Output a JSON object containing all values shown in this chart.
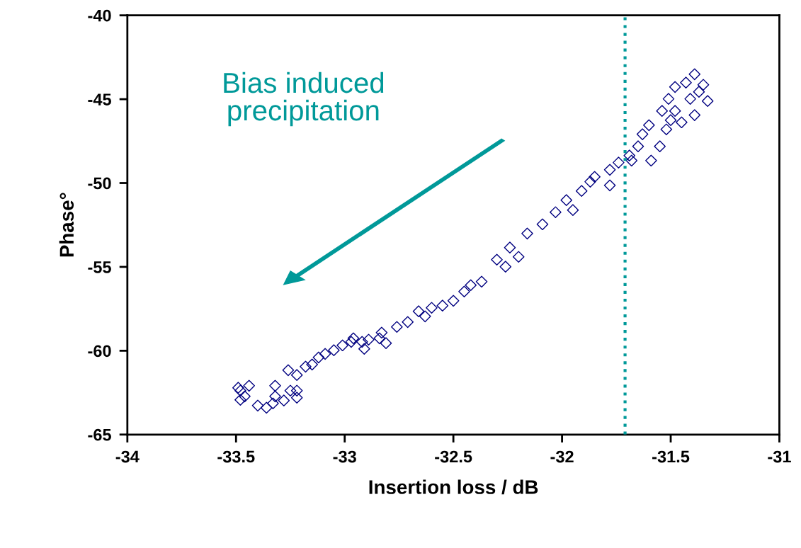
{
  "chart_data": {
    "type": "scatter",
    "xlabel": "Insertion loss / dB",
    "ylabel": "Phase°",
    "xlim": [
      -34,
      -31
    ],
    "xticks": [
      -34,
      -33.5,
      -33,
      -32.5,
      -32,
      -31.5,
      -31
    ],
    "ylim": [
      -65,
      -40
    ],
    "yticks": [
      -65,
      -60,
      -55,
      -50,
      -45,
      -40
    ],
    "grid": false,
    "marker": "diamond",
    "ref_lines": [
      {
        "axis": "x",
        "value": -31.71,
        "label": null,
        "color": "#009999",
        "line_style": "dotted"
      }
    ],
    "annotations": [
      "Bias induced\nprecipitation"
    ],
    "series": [
      {
        "color": "#000080",
        "x": [
          -33.48,
          -33.46,
          -33.44,
          -33.49,
          -33.48,
          -33.4,
          -33.36,
          -33.33,
          -33.32,
          -33.28,
          -33.25,
          -33.22,
          -33.22,
          -33.32,
          -33.26,
          -33.22,
          -33.18,
          -33.15,
          -33.12,
          -33.09,
          -33.05,
          -33.01,
          -32.97,
          -32.96,
          -32.92,
          -32.89,
          -32.84,
          -32.91,
          -32.81,
          -32.83,
          -32.76,
          -32.71,
          -32.66,
          -32.63,
          -32.6,
          -32.55,
          -32.5,
          -32.45,
          -32.42,
          -32.37,
          -32.3,
          -32.26,
          -32.2,
          -32.24,
          -32.16,
          -32.09,
          -32.03,
          -31.98,
          -31.95,
          -31.91,
          -31.87,
          -31.85,
          -31.78,
          -31.78,
          -31.74,
          -31.69,
          -31.68,
          -31.65,
          -31.63,
          -31.6,
          -31.59,
          -31.55,
          -31.54,
          -31.51,
          -31.48,
          -31.45,
          -31.43,
          -31.39,
          -31.39,
          -31.37,
          -31.35,
          -31.33,
          -31.41,
          -31.48,
          -31.52,
          -31.5
        ],
        "values": [
          -62.38,
          -62.72,
          -62.09,
          -62.21,
          -62.93,
          -63.27,
          -63.4,
          -63.14,
          -62.72,
          -62.97,
          -62.38,
          -62.8,
          -62.38,
          -62.09,
          -61.16,
          -61.45,
          -60.95,
          -60.82,
          -60.4,
          -60.19,
          -59.97,
          -59.68,
          -59.47,
          -59.26,
          -59.47,
          -59.34,
          -59.26,
          -59.89,
          -59.55,
          -58.92,
          -58.58,
          -58.29,
          -57.65,
          -57.95,
          -57.44,
          -57.31,
          -57.02,
          -56.47,
          -56.09,
          -55.88,
          -54.57,
          -54.99,
          -54.4,
          -53.85,
          -53.01,
          -52.46,
          -51.74,
          -51.02,
          -51.61,
          -50.47,
          -49.92,
          -49.63,
          -50.14,
          -49.21,
          -48.78,
          -48.36,
          -48.66,
          -47.81,
          -47.09,
          -46.55,
          -48.66,
          -47.81,
          -45.7,
          -44.98,
          -44.27,
          -46.38,
          -44.01,
          -43.51,
          -45.95,
          -44.56,
          -44.14,
          -45.11,
          -44.98,
          -45.7,
          -46.8,
          -46.25
        ]
      }
    ]
  }
}
